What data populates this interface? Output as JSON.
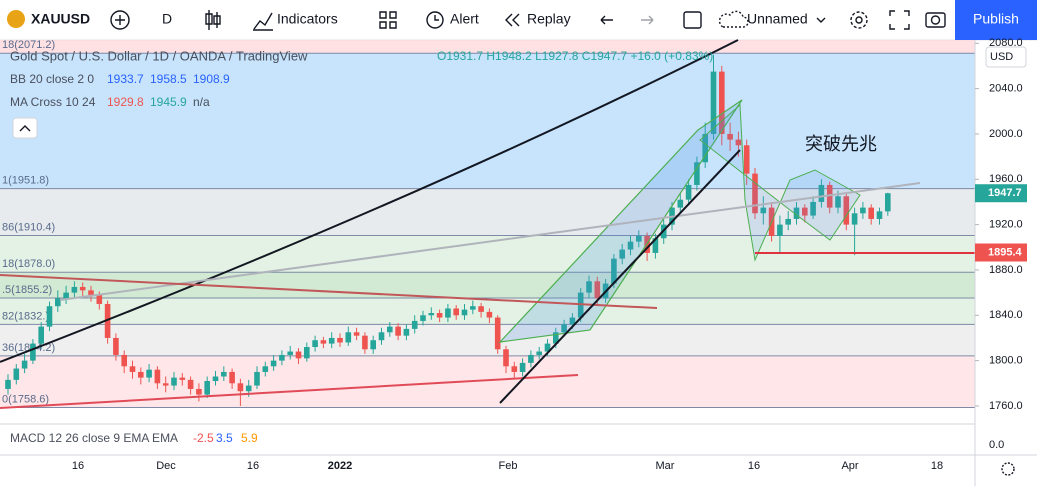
{
  "toolbar": {
    "symbol": "XAUUSD",
    "interval": "D",
    "indicators": "Indicators",
    "alert": "Alert",
    "replay": "Replay",
    "layout_name": "Unnamed",
    "publish": "Publish"
  },
  "legend": {
    "title": "Gold Spot / U.S. Dollar / 1D / OANDA / TradingView",
    "ohlc": "O1931.7 H1948.2 L1927.8 C1947.7 +16.0 (+0.83%)",
    "bb_name": "BB 20 close 2 0",
    "bb_values": [
      "1933.7",
      "1958.5",
      "1908.9"
    ],
    "ma_name": "MA Cross 10 24",
    "ma_values": [
      "1929.8",
      "1945.9",
      "n/a"
    ],
    "macd_name": "MACD 12 26 close 9 EMA EMA",
    "macd_values": [
      "-2.5",
      "3.5",
      "5.9"
    ],
    "macd_zero": "0.0"
  },
  "annotation": "突破先兆",
  "currency": "USD",
  "chart_data": {
    "type": "candlestick",
    "up_color": "#26a69a",
    "down_color": "#ef5350",
    "ylim": [
      1747.6,
      2082.9
    ],
    "yticks": [
      {
        "value": 2080,
        "label": "2080.0"
      },
      {
        "value": 2040,
        "label": "2040.0"
      },
      {
        "value": 2000,
        "label": "2000.0"
      },
      {
        "value": 1960,
        "label": "1960.0"
      },
      {
        "value": 1920,
        "label": "1920.0"
      },
      {
        "value": 1880,
        "label": "1880.0"
      },
      {
        "value": 1840,
        "label": "1840.0"
      },
      {
        "value": 1800,
        "label": "1800.0"
      },
      {
        "value": 1760,
        "label": "1760.0"
      }
    ],
    "x_labels": [
      "16",
      "Dec",
      "16",
      "2022",
      "Feb",
      "Mar",
      "16",
      "Apr",
      "18"
    ],
    "price_badges": [
      {
        "value": 1947.7,
        "label": "1947.7",
        "color": "#26a69a"
      },
      {
        "value": 1895.4,
        "label": "1895.4",
        "color": "#ef5350"
      }
    ],
    "fib_levels": [
      {
        "value": 2071.2,
        "label": "18(2071.2)"
      },
      {
        "value": 1951.8,
        "label": "1(1951.8)"
      },
      {
        "value": 1910.4,
        "label": "86(1910.4)"
      },
      {
        "value": 1878.0,
        "label": "18(1878.0)"
      },
      {
        "value": 1855.2,
        "label": ".5(1855.2)"
      },
      {
        "value": 1832.0,
        "label": "82(1832.)"
      },
      {
        "value": 1804.2,
        "label": "36(1804.2)"
      },
      {
        "value": 1758.6,
        "label": "0(1758.6)"
      }
    ],
    "ohlc": [
      [
        1775,
        1788,
        1770,
        1783
      ],
      [
        1783,
        1797,
        1779,
        1793
      ],
      [
        1793,
        1806,
        1789,
        1800
      ],
      [
        1800,
        1819,
        1797,
        1815
      ],
      [
        1815,
        1834,
        1811,
        1830
      ],
      [
        1830,
        1852,
        1826,
        1848
      ],
      [
        1848,
        1862,
        1843,
        1855
      ],
      [
        1855,
        1866,
        1850,
        1860
      ],
      [
        1860,
        1870,
        1855,
        1865
      ],
      [
        1865,
        1869,
        1857,
        1862
      ],
      [
        1862,
        1866,
        1852,
        1858
      ],
      [
        1858,
        1861,
        1845,
        1850
      ],
      [
        1850,
        1853,
        1815,
        1820
      ],
      [
        1820,
        1824,
        1800,
        1805
      ],
      [
        1805,
        1809,
        1789,
        1795
      ],
      [
        1795,
        1800,
        1784,
        1790
      ],
      [
        1790,
        1794,
        1779,
        1785
      ],
      [
        1785,
        1797,
        1781,
        1792
      ],
      [
        1792,
        1795,
        1775,
        1780
      ],
      [
        1780,
        1786,
        1772,
        1778
      ],
      [
        1778,
        1790,
        1774,
        1785
      ],
      [
        1785,
        1789,
        1778,
        1783
      ],
      [
        1783,
        1786,
        1770,
        1775
      ],
      [
        1775,
        1780,
        1764,
        1770
      ],
      [
        1770,
        1786,
        1767,
        1782
      ],
      [
        1782,
        1791,
        1778,
        1786
      ],
      [
        1786,
        1795,
        1782,
        1790
      ],
      [
        1790,
        1793,
        1775,
        1780
      ],
      [
        1780,
        1784,
        1760,
        1773
      ],
      [
        1773,
        1783,
        1768,
        1778
      ],
      [
        1778,
        1795,
        1775,
        1790
      ],
      [
        1790,
        1799,
        1786,
        1795
      ],
      [
        1795,
        1805,
        1791,
        1800
      ],
      [
        1800,
        1809,
        1796,
        1805
      ],
      [
        1805,
        1813,
        1801,
        1808
      ],
      [
        1808,
        1811,
        1797,
        1802
      ],
      [
        1802,
        1816,
        1799,
        1812
      ],
      [
        1812,
        1822,
        1808,
        1818
      ],
      [
        1818,
        1821,
        1811,
        1815
      ],
      [
        1815,
        1825,
        1811,
        1820
      ],
      [
        1820,
        1824,
        1812,
        1816
      ],
      [
        1816,
        1830,
        1813,
        1825
      ],
      [
        1825,
        1829,
        1818,
        1822
      ],
      [
        1822,
        1825,
        1806,
        1810
      ],
      [
        1810,
        1822,
        1806,
        1818
      ],
      [
        1818,
        1829,
        1814,
        1825
      ],
      [
        1825,
        1834,
        1821,
        1830
      ],
      [
        1830,
        1833,
        1818,
        1822
      ],
      [
        1822,
        1832,
        1818,
        1828
      ],
      [
        1828,
        1840,
        1824,
        1835
      ],
      [
        1835,
        1844,
        1831,
        1840
      ],
      [
        1840,
        1847,
        1836,
        1842
      ],
      [
        1842,
        1845,
        1834,
        1838
      ],
      [
        1838,
        1850,
        1834,
        1846
      ],
      [
        1846,
        1849,
        1836,
        1840
      ],
      [
        1840,
        1850,
        1836,
        1845
      ],
      [
        1845,
        1853,
        1841,
        1848
      ],
      [
        1848,
        1851,
        1838,
        1843
      ],
      [
        1843,
        1846,
        1833,
        1838
      ],
      [
        1838,
        1840,
        1806,
        1810
      ],
      [
        1810,
        1813,
        1789,
        1795
      ],
      [
        1795,
        1799,
        1785,
        1790
      ],
      [
        1790,
        1802,
        1786,
        1798
      ],
      [
        1798,
        1809,
        1794,
        1805
      ],
      [
        1805,
        1812,
        1801,
        1808
      ],
      [
        1808,
        1819,
        1804,
        1815
      ],
      [
        1815,
        1829,
        1811,
        1825
      ],
      [
        1825,
        1836,
        1821,
        1832
      ],
      [
        1832,
        1842,
        1828,
        1838
      ],
      [
        1838,
        1864,
        1834,
        1860
      ],
      [
        1860,
        1875,
        1855,
        1870
      ],
      [
        1870,
        1874,
        1850,
        1855
      ],
      [
        1855,
        1872,
        1851,
        1868
      ],
      [
        1868,
        1894,
        1864,
        1890
      ],
      [
        1890,
        1903,
        1885,
        1898
      ],
      [
        1898,
        1910,
        1893,
        1905
      ],
      [
        1905,
        1915,
        1900,
        1910
      ],
      [
        1910,
        1913,
        1888,
        1895
      ],
      [
        1895,
        1912,
        1890,
        1908
      ],
      [
        1908,
        1925,
        1903,
        1920
      ],
      [
        1920,
        1940,
        1915,
        1935
      ],
      [
        1935,
        1948,
        1930,
        1942
      ],
      [
        1942,
        1960,
        1937,
        1955
      ],
      [
        1955,
        1980,
        1950,
        1975
      ],
      [
        1975,
        2010,
        1970,
        2000
      ],
      [
        2000,
        2070,
        1995,
        2055
      ],
      [
        2055,
        2060,
        1990,
        2000
      ],
      [
        2000,
        2010,
        1985,
        1995
      ],
      [
        1995,
        2002,
        1980,
        1990
      ],
      [
        1990,
        1995,
        1955,
        1965
      ],
      [
        1965,
        1970,
        1925,
        1930
      ],
      [
        1930,
        1945,
        1920,
        1935
      ],
      [
        1935,
        1940,
        1905,
        1910
      ],
      [
        1910,
        1928,
        1895,
        1920
      ],
      [
        1920,
        1932,
        1915,
        1925
      ],
      [
        1925,
        1940,
        1920,
        1935
      ],
      [
        1935,
        1938,
        1922,
        1928
      ],
      [
        1928,
        1945,
        1925,
        1940
      ],
      [
        1940,
        1960,
        1935,
        1955
      ],
      [
        1955,
        1958,
        1930,
        1935
      ],
      [
        1935,
        1950,
        1930,
        1945
      ],
      [
        1945,
        1948,
        1915,
        1920
      ],
      [
        1920,
        1935,
        1893,
        1930
      ],
      [
        1930,
        1940,
        1925,
        1935
      ],
      [
        1935,
        1938,
        1920,
        1925
      ],
      [
        1925,
        1935,
        1920,
        1931.7
      ],
      [
        1931.7,
        1948.2,
        1927.8,
        1947.7
      ]
    ]
  }
}
